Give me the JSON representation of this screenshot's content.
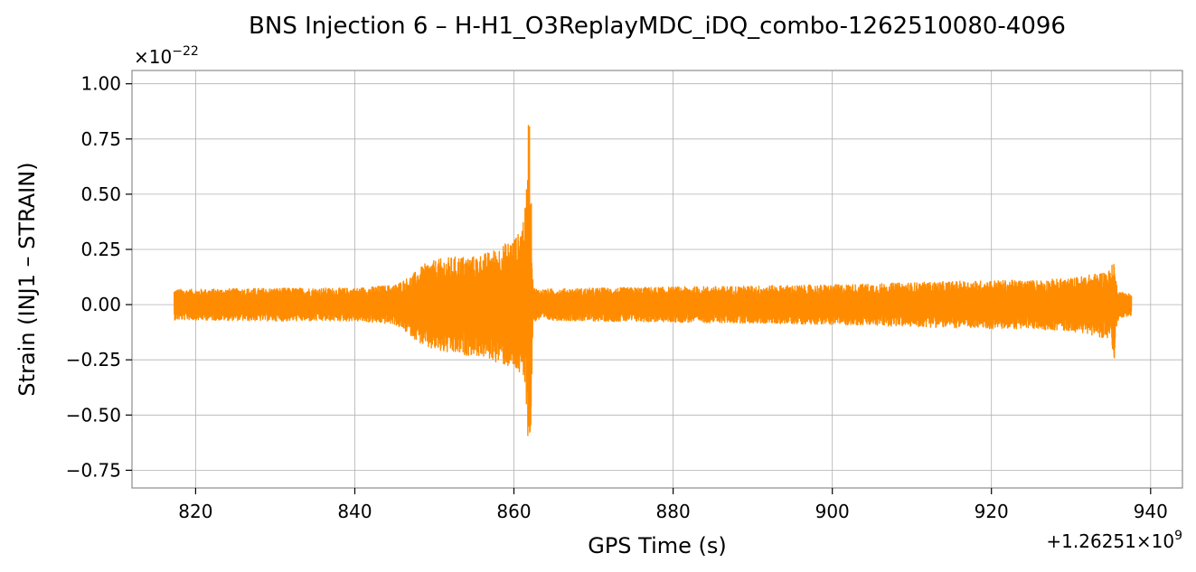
{
  "chart_data": {
    "type": "line",
    "title": "BNS Injection 6 – H-H1_O3ReplayMDC_iDQ_combo-1262510080-4096",
    "xlabel": "GPS Time (s)",
    "ylabel": "Strain (INJ1 – STRAIN)",
    "x_offset_label": "+1.26251×10",
    "x_offset_exponent": "9",
    "y_scale_label": "×10",
    "y_scale_exponent": "−22",
    "xlim": [
      812,
      944
    ],
    "ylim": [
      -0.83,
      1.06
    ],
    "xticks": [
      820,
      840,
      860,
      880,
      900,
      920,
      940
    ],
    "yticks": [
      -0.75,
      -0.5,
      -0.25,
      0.0,
      0.25,
      0.5,
      0.75,
      1.0
    ],
    "ytick_labels": [
      "−0.75",
      "−0.50",
      "−0.25",
      "0.00",
      "0.25",
      "0.50",
      "0.75",
      "1.00"
    ],
    "grid": true,
    "series": [
      {
        "color": "#ff8c00",
        "envelope": {
          "x": [
            817.3,
            820,
            830,
            840,
            845,
            847,
            849,
            851,
            853,
            855,
            857,
            859,
            860.5,
            861.5,
            861.9,
            862.1,
            862.4,
            863,
            870,
            880,
            890,
            900,
            910,
            920,
            925,
            930,
            933,
            935,
            935.4,
            935.6,
            936,
            937.6
          ],
          "upper": [
            0.07,
            0.07,
            0.075,
            0.075,
            0.09,
            0.13,
            0.19,
            0.21,
            0.22,
            0.22,
            0.24,
            0.28,
            0.32,
            0.45,
            0.97,
            0.6,
            0.08,
            0.07,
            0.075,
            0.08,
            0.085,
            0.09,
            0.1,
            0.11,
            0.11,
            0.12,
            0.14,
            0.16,
            0.21,
            0.12,
            0.06,
            0.05
          ],
          "lower": [
            -0.07,
            -0.07,
            -0.075,
            -0.075,
            -0.09,
            -0.14,
            -0.2,
            -0.22,
            -0.23,
            -0.23,
            -0.25,
            -0.28,
            -0.31,
            -0.4,
            -0.75,
            -0.6,
            -0.08,
            -0.07,
            -0.075,
            -0.08,
            -0.085,
            -0.09,
            -0.1,
            -0.11,
            -0.11,
            -0.12,
            -0.14,
            -0.16,
            -0.31,
            -0.12,
            -0.06,
            -0.05
          ]
        }
      }
    ]
  }
}
